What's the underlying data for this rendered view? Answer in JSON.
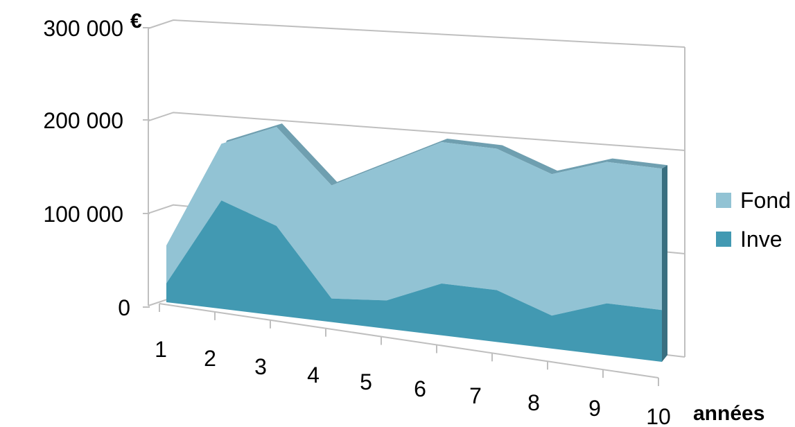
{
  "chart_data": {
    "type": "area",
    "subtype": "3d-stacked",
    "title": "",
    "y_unit_label": "€",
    "x_unit_label": "années",
    "x": [
      "1",
      "2",
      "3",
      "4",
      "5",
      "6",
      "7",
      "8",
      "9",
      "10"
    ],
    "ylim": [
      0,
      300000
    ],
    "y_ticks": [
      "0",
      "100 000",
      "200 000",
      "300 000"
    ],
    "grid": true,
    "legend_position": "right",
    "series": [
      {
        "name": "Inve",
        "color": "#4299B2",
        "values": [
          20000,
          115000,
          95000,
          25000,
          30000,
          55000,
          55000,
          35000,
          55000,
          55000
        ]
      },
      {
        "name": "Fond",
        "color": "#92C3D4",
        "values": [
          40000,
          60000,
          105000,
          120000,
          145000,
          150000,
          150000,
          150000,
          150000,
          150000
        ]
      }
    ]
  }
}
